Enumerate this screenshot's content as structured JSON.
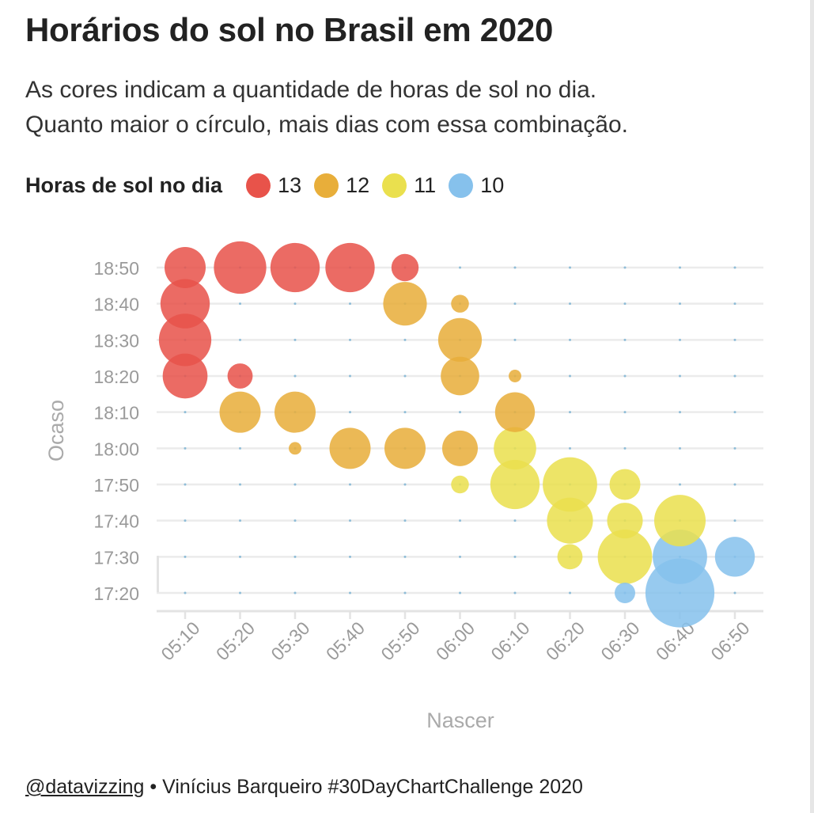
{
  "title": "Horários do sol no Brasil em 2020",
  "subtitle": [
    "As cores indicam a quantidade de horas de sol no dia.",
    "Quanto maior o círculo, mais dias com essa combinação."
  ],
  "legend": {
    "title": "Horas de sol no dia",
    "items": [
      {
        "label": "13",
        "color": "#e8534a"
      },
      {
        "label": "12",
        "color": "#e8ae3a"
      },
      {
        "label": "11",
        "color": "#eae04e"
      },
      {
        "label": "10",
        "color": "#86c1ec"
      }
    ]
  },
  "footer": {
    "handle": "@datavizzing",
    "separator": " • ",
    "text": "Vinícius Barqueiro #30DayChartChallenge 2020"
  },
  "chart_data": {
    "type": "scatter",
    "xlabel": "Nascer",
    "ylabel": "Ocaso",
    "x_ticks": [
      "05:10",
      "05:20",
      "05:30",
      "05:40",
      "05:50",
      "06:00",
      "06:10",
      "06:20",
      "06:30",
      "06:40",
      "06:50"
    ],
    "y_ticks": [
      "18:50",
      "18:40",
      "18:30",
      "18:20",
      "18:10",
      "18:00",
      "17:50",
      "17:40",
      "17:30",
      "17:20"
    ],
    "x_range": [
      "05:10",
      "06:50"
    ],
    "y_range": [
      "17:20",
      "18:50"
    ],
    "grid": true,
    "size_meaning": "número de dias",
    "points": [
      {
        "nascer": "05:10",
        "ocaso": "18:50",
        "horas": 13,
        "dias": 16
      },
      {
        "nascer": "05:20",
        "ocaso": "18:50",
        "horas": 13,
        "dias": 26
      },
      {
        "nascer": "05:30",
        "ocaso": "18:50",
        "horas": 13,
        "dias": 23
      },
      {
        "nascer": "05:40",
        "ocaso": "18:50",
        "horas": 13,
        "dias": 23
      },
      {
        "nascer": "05:50",
        "ocaso": "18:50",
        "horas": 13,
        "dias": 7
      },
      {
        "nascer": "05:10",
        "ocaso": "18:40",
        "horas": 13,
        "dias": 23
      },
      {
        "nascer": "05:10",
        "ocaso": "18:30",
        "horas": 13,
        "dias": 26
      },
      {
        "nascer": "05:10",
        "ocaso": "18:20",
        "horas": 13,
        "dias": 19
      },
      {
        "nascer": "05:20",
        "ocaso": "18:20",
        "horas": 13,
        "dias": 6
      },
      {
        "nascer": "05:50",
        "ocaso": "18:40",
        "horas": 12,
        "dias": 18
      },
      {
        "nascer": "06:00",
        "ocaso": "18:40",
        "horas": 12,
        "dias": 3
      },
      {
        "nascer": "06:00",
        "ocaso": "18:30",
        "horas": 12,
        "dias": 18
      },
      {
        "nascer": "06:00",
        "ocaso": "18:20",
        "horas": 12,
        "dias": 14
      },
      {
        "nascer": "06:10",
        "ocaso": "18:20",
        "horas": 12,
        "dias": 1.5
      },
      {
        "nascer": "05:20",
        "ocaso": "18:10",
        "horas": 12,
        "dias": 16
      },
      {
        "nascer": "05:30",
        "ocaso": "18:10",
        "horas": 12,
        "dias": 16
      },
      {
        "nascer": "06:10",
        "ocaso": "18:10",
        "horas": 12,
        "dias": 15
      },
      {
        "nascer": "05:30",
        "ocaso": "18:00",
        "horas": 12,
        "dias": 1.5
      },
      {
        "nascer": "05:40",
        "ocaso": "18:00",
        "horas": 12,
        "dias": 16
      },
      {
        "nascer": "05:50",
        "ocaso": "18:00",
        "horas": 12,
        "dias": 16
      },
      {
        "nascer": "06:00",
        "ocaso": "18:00",
        "horas": 12,
        "dias": 12
      },
      {
        "nascer": "06:10",
        "ocaso": "18:00",
        "horas": 11,
        "dias": 17
      },
      {
        "nascer": "06:00",
        "ocaso": "17:50",
        "horas": 11,
        "dias": 3
      },
      {
        "nascer": "06:10",
        "ocaso": "17:50",
        "horas": 11,
        "dias": 23
      },
      {
        "nascer": "06:20",
        "ocaso": "17:50",
        "horas": 11,
        "dias": 28
      },
      {
        "nascer": "06:30",
        "ocaso": "17:50",
        "horas": 11,
        "dias": 9
      },
      {
        "nascer": "06:20",
        "ocaso": "17:40",
        "horas": 11,
        "dias": 20
      },
      {
        "nascer": "06:30",
        "ocaso": "17:40",
        "horas": 11,
        "dias": 12
      },
      {
        "nascer": "06:40",
        "ocaso": "17:40",
        "horas": 11,
        "dias": 25
      },
      {
        "nascer": "06:20",
        "ocaso": "17:30",
        "horas": 11,
        "dias": 6
      },
      {
        "nascer": "06:30",
        "ocaso": "17:30",
        "horas": 11,
        "dias": 28
      },
      {
        "nascer": "06:40",
        "ocaso": "17:30",
        "horas": 10,
        "dias": 28
      },
      {
        "nascer": "06:50",
        "ocaso": "17:30",
        "horas": 10,
        "dias": 15
      },
      {
        "nascer": "06:30",
        "ocaso": "17:20",
        "horas": 10,
        "dias": 4
      },
      {
        "nascer": "06:40",
        "ocaso": "17:20",
        "horas": 10,
        "dias": 45
      }
    ]
  }
}
